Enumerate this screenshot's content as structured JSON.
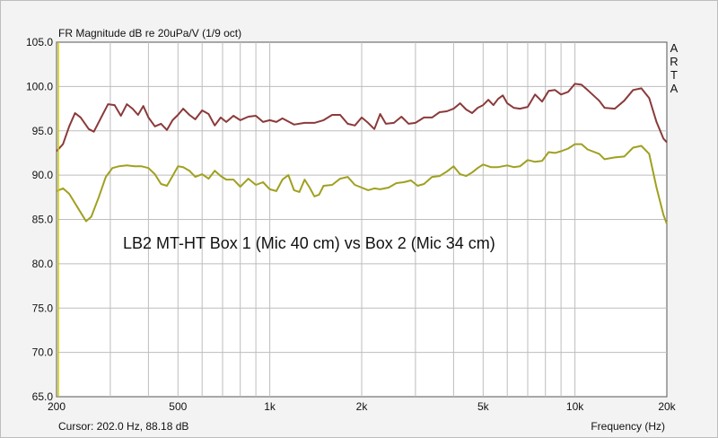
{
  "chart_data": {
    "type": "line",
    "title": "FR Magnitude dB re 20uPa/V (1/9 oct)",
    "xlabel": "Frequency (Hz)",
    "ylabel": "",
    "xscale": "log",
    "xlim": [
      200,
      20000
    ],
    "ylim": [
      65,
      105
    ],
    "yticks": [
      "65.0",
      "70.0",
      "75.0",
      "80.0",
      "85.0",
      "90.0",
      "95.0",
      "100.0",
      "105.0"
    ],
    "xticks": [
      {
        "value": 200,
        "label": "200"
      },
      {
        "value": 500,
        "label": "500"
      },
      {
        "value": 1000,
        "label": "1k"
      },
      {
        "value": 2000,
        "label": "2k"
      },
      {
        "value": 5000,
        "label": "5k"
      },
      {
        "value": 10000,
        "label": "10k"
      },
      {
        "value": 20000,
        "label": "20k"
      }
    ],
    "grid": true,
    "annotation": "LB2 MT-HT Box 1 (Mic 40 cm) vs Box 2 (Mic 34 cm)",
    "side_label": [
      "A",
      "R",
      "T",
      "A"
    ],
    "cursor_text": "Cursor: 202.0 Hz, 88.18 dB",
    "series": [
      {
        "color": "#8b3a3a",
        "points": [
          [
            200,
            92.7
          ],
          [
            210,
            93.5
          ],
          [
            220,
            95.5
          ],
          [
            230,
            97.0
          ],
          [
            240,
            96.5
          ],
          [
            255,
            95.2
          ],
          [
            265,
            94.9
          ],
          [
            280,
            96.5
          ],
          [
            295,
            98.0
          ],
          [
            310,
            97.9
          ],
          [
            325,
            96.7
          ],
          [
            340,
            98.0
          ],
          [
            355,
            97.5
          ],
          [
            370,
            96.8
          ],
          [
            385,
            97.8
          ],
          [
            400,
            96.5
          ],
          [
            420,
            95.5
          ],
          [
            440,
            95.8
          ],
          [
            460,
            95.1
          ],
          [
            480,
            96.2
          ],
          [
            500,
            96.8
          ],
          [
            520,
            97.5
          ],
          [
            545,
            96.8
          ],
          [
            570,
            96.3
          ],
          [
            600,
            97.3
          ],
          [
            630,
            96.9
          ],
          [
            660,
            95.6
          ],
          [
            690,
            96.5
          ],
          [
            720,
            96.0
          ],
          [
            760,
            96.7
          ],
          [
            800,
            96.2
          ],
          [
            850,
            96.6
          ],
          [
            900,
            96.7
          ],
          [
            950,
            96.0
          ],
          [
            1000,
            96.2
          ],
          [
            1050,
            96.0
          ],
          [
            1100,
            96.4
          ],
          [
            1200,
            95.7
          ],
          [
            1300,
            95.9
          ],
          [
            1400,
            95.9
          ],
          [
            1500,
            96.2
          ],
          [
            1600,
            96.8
          ],
          [
            1700,
            96.8
          ],
          [
            1800,
            95.8
          ],
          [
            1900,
            95.6
          ],
          [
            2000,
            96.5
          ],
          [
            2100,
            95.9
          ],
          [
            2200,
            95.2
          ],
          [
            2300,
            96.9
          ],
          [
            2400,
            95.8
          ],
          [
            2550,
            95.9
          ],
          [
            2700,
            96.6
          ],
          [
            2850,
            95.8
          ],
          [
            3000,
            95.9
          ],
          [
            3200,
            96.5
          ],
          [
            3400,
            96.5
          ],
          [
            3600,
            97.1
          ],
          [
            3800,
            97.2
          ],
          [
            4000,
            97.5
          ],
          [
            4200,
            98.1
          ],
          [
            4400,
            97.4
          ],
          [
            4600,
            97.0
          ],
          [
            4800,
            97.6
          ],
          [
            5000,
            97.9
          ],
          [
            5200,
            98.5
          ],
          [
            5400,
            97.9
          ],
          [
            5600,
            98.6
          ],
          [
            5800,
            99.0
          ],
          [
            6000,
            98.1
          ],
          [
            6300,
            97.6
          ],
          [
            6600,
            97.5
          ],
          [
            7000,
            97.7
          ],
          [
            7400,
            99.1
          ],
          [
            7800,
            98.3
          ],
          [
            8200,
            99.5
          ],
          [
            8600,
            99.6
          ],
          [
            9000,
            99.1
          ],
          [
            9500,
            99.4
          ],
          [
            10000,
            100.3
          ],
          [
            10500,
            100.2
          ],
          [
            11000,
            99.6
          ],
          [
            12000,
            98.4
          ],
          [
            12500,
            97.6
          ],
          [
            13500,
            97.5
          ],
          [
            14500,
            98.4
          ],
          [
            15500,
            99.6
          ],
          [
            16500,
            99.8
          ],
          [
            17500,
            98.7
          ],
          [
            18500,
            96.0
          ],
          [
            19500,
            94.1
          ],
          [
            20000,
            93.7
          ]
        ]
      },
      {
        "color": "#a0a020",
        "points": [
          [
            200,
            88.2
          ],
          [
            210,
            88.5
          ],
          [
            220,
            87.9
          ],
          [
            235,
            86.3
          ],
          [
            250,
            84.8
          ],
          [
            260,
            85.3
          ],
          [
            275,
            87.5
          ],
          [
            290,
            89.8
          ],
          [
            305,
            90.8
          ],
          [
            320,
            91.0
          ],
          [
            340,
            91.1
          ],
          [
            360,
            91.0
          ],
          [
            380,
            91.0
          ],
          [
            400,
            90.8
          ],
          [
            420,
            90.1
          ],
          [
            440,
            89.0
          ],
          [
            460,
            88.8
          ],
          [
            480,
            89.9
          ],
          [
            500,
            91.0
          ],
          [
            520,
            90.9
          ],
          [
            545,
            90.5
          ],
          [
            570,
            89.8
          ],
          [
            600,
            90.1
          ],
          [
            630,
            89.6
          ],
          [
            660,
            90.5
          ],
          [
            690,
            89.9
          ],
          [
            720,
            89.5
          ],
          [
            760,
            89.5
          ],
          [
            800,
            88.7
          ],
          [
            850,
            89.6
          ],
          [
            900,
            88.9
          ],
          [
            950,
            89.2
          ],
          [
            1000,
            88.4
          ],
          [
            1050,
            88.2
          ],
          [
            1100,
            89.5
          ],
          [
            1150,
            90.0
          ],
          [
            1200,
            88.3
          ],
          [
            1250,
            88.1
          ],
          [
            1300,
            89.5
          ],
          [
            1350,
            88.6
          ],
          [
            1400,
            87.6
          ],
          [
            1450,
            87.8
          ],
          [
            1500,
            88.8
          ],
          [
            1600,
            88.9
          ],
          [
            1700,
            89.6
          ],
          [
            1800,
            89.8
          ],
          [
            1900,
            88.9
          ],
          [
            2000,
            88.6
          ],
          [
            2100,
            88.3
          ],
          [
            2200,
            88.5
          ],
          [
            2300,
            88.4
          ],
          [
            2450,
            88.6
          ],
          [
            2600,
            89.1
          ],
          [
            2750,
            89.2
          ],
          [
            2900,
            89.4
          ],
          [
            3050,
            88.8
          ],
          [
            3200,
            89.0
          ],
          [
            3400,
            89.8
          ],
          [
            3600,
            89.9
          ],
          [
            3800,
            90.4
          ],
          [
            4000,
            91.0
          ],
          [
            4200,
            90.1
          ],
          [
            4400,
            89.9
          ],
          [
            4600,
            90.3
          ],
          [
            4800,
            90.8
          ],
          [
            5000,
            91.2
          ],
          [
            5300,
            90.9
          ],
          [
            5600,
            90.9
          ],
          [
            6000,
            91.1
          ],
          [
            6300,
            90.9
          ],
          [
            6600,
            91.0
          ],
          [
            7000,
            91.7
          ],
          [
            7400,
            91.5
          ],
          [
            7800,
            91.6
          ],
          [
            8200,
            92.6
          ],
          [
            8600,
            92.5
          ],
          [
            9000,
            92.7
          ],
          [
            9500,
            93.0
          ],
          [
            10000,
            93.5
          ],
          [
            10500,
            93.5
          ],
          [
            11000,
            92.9
          ],
          [
            12000,
            92.4
          ],
          [
            12500,
            91.8
          ],
          [
            13500,
            92.0
          ],
          [
            14500,
            92.1
          ],
          [
            15500,
            93.1
          ],
          [
            16500,
            93.3
          ],
          [
            17500,
            92.4
          ],
          [
            18500,
            88.6
          ],
          [
            19500,
            85.5
          ],
          [
            20000,
            84.5
          ]
        ]
      }
    ]
  }
}
